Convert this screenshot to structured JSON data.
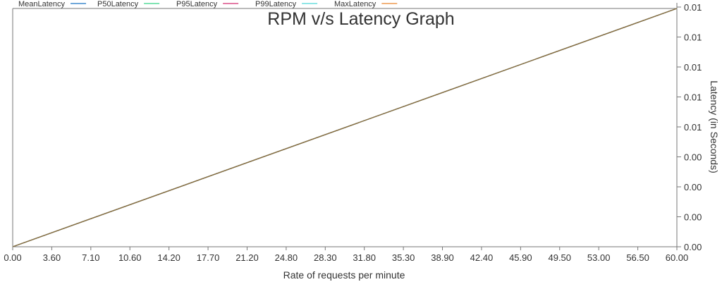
{
  "chart_data": {
    "type": "line",
    "title": "RPM v/s Latency Graph",
    "xlabel": "Rate of requests per minute",
    "ylabel": "Latency (in Seconds)",
    "xlim": [
      0,
      60
    ],
    "ylim": [
      0,
      0.008
    ],
    "x_ticks": [
      "0.00",
      "3.60",
      "7.10",
      "10.60",
      "14.20",
      "17.70",
      "21.20",
      "24.80",
      "28.30",
      "31.80",
      "35.30",
      "38.90",
      "42.40",
      "45.90",
      "49.50",
      "53.00",
      "56.50",
      "60.00"
    ],
    "y_ticks": [
      "0.00",
      "0.00",
      "0.00",
      "0.00",
      "0.01",
      "0.01",
      "0.01",
      "0.01",
      "0.01"
    ],
    "y_axis_side": "right",
    "legend_position": "top-left",
    "series": [
      {
        "name": "MeanLatency",
        "color": "#5b9bd5",
        "x": [
          0,
          60
        ],
        "y": [
          0,
          0.008
        ]
      },
      {
        "name": "P50Latency",
        "color": "#6ee0a8",
        "x": [
          0,
          60
        ],
        "y": [
          0,
          0.008
        ]
      },
      {
        "name": "P95Latency",
        "color": "#e06a9a",
        "x": [
          0,
          60
        ],
        "y": [
          0,
          0.008
        ]
      },
      {
        "name": "P99Latency",
        "color": "#7fe3e3",
        "x": [
          0,
          60
        ],
        "y": [
          0,
          0.008
        ]
      },
      {
        "name": "MaxLatency",
        "color": "#f0a868",
        "x": [
          0,
          60
        ],
        "y": [
          0,
          0.008
        ]
      }
    ],
    "visible_line_color": "#8a6a3a"
  }
}
